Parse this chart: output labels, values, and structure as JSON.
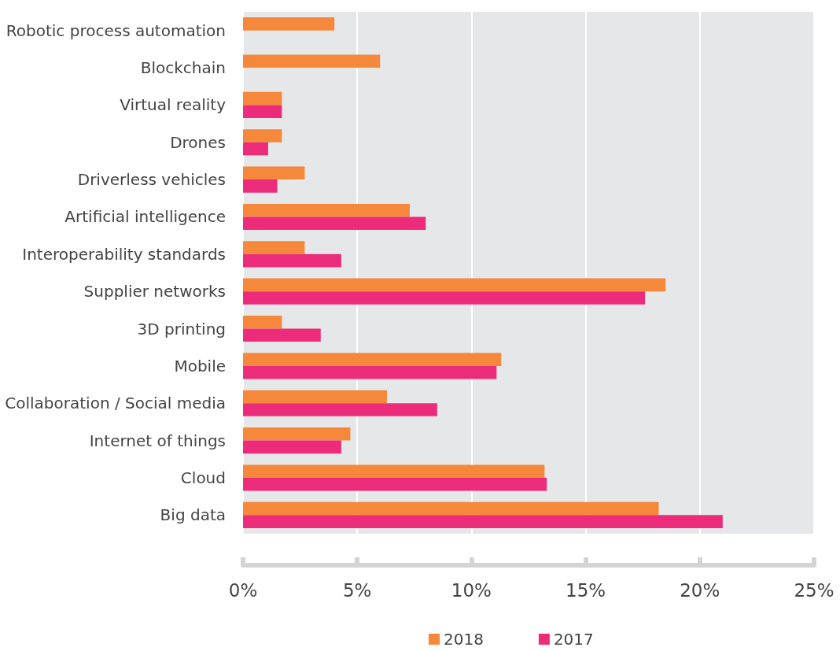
{
  "chart_data": {
    "type": "bar",
    "orientation": "horizontal",
    "categories": [
      "Robotic process automation",
      "Blockchain",
      "Virtual reality",
      "Drones",
      "Driverless vehicles",
      "Artificial intelligence",
      "Interoperability standards",
      "Supplier networks",
      "3D printing",
      "Mobile",
      "Collaboration / Social media",
      "Internet of things",
      "Cloud",
      "Big data"
    ],
    "series": [
      {
        "name": "2018",
        "color": "#f5883b",
        "values": [
          4.0,
          6.0,
          1.7,
          1.7,
          2.7,
          7.3,
          2.7,
          18.5,
          1.7,
          11.3,
          6.3,
          4.7,
          13.2,
          18.2
        ]
      },
      {
        "name": "2017",
        "color": "#ec2c7b",
        "values": [
          null,
          null,
          1.7,
          1.1,
          1.5,
          8.0,
          4.3,
          17.6,
          3.4,
          11.1,
          8.5,
          4.3,
          13.3,
          21.0
        ]
      }
    ],
    "xlim": [
      0,
      25
    ],
    "xticks": [
      {
        "value": 0,
        "label": "0%"
      },
      {
        "value": 5,
        "label": "5%"
      },
      {
        "value": 10,
        "label": "10%"
      },
      {
        "value": 15,
        "label": "15%"
      },
      {
        "value": 20,
        "label": "20%"
      },
      {
        "value": 25,
        "label": "25%"
      }
    ],
    "grid": "x",
    "legend": "bottom"
  }
}
